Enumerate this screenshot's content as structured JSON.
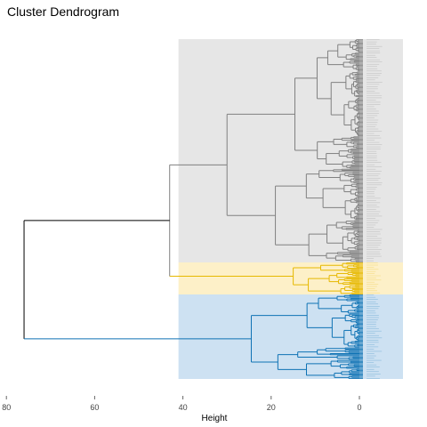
{
  "chart_data": {
    "type": "dendrogram",
    "title": "Cluster Dendrogram",
    "xlabel": "Height",
    "ylabel": "",
    "xlim": [
      80,
      -10
    ],
    "x_ticks": [
      80,
      60,
      40,
      20,
      0
    ],
    "grid": false,
    "legend": "none",
    "clusters": [
      {
        "id": 1,
        "color": "#808080",
        "band_color": "#e6e6e6",
        "leaf_count": 200,
        "merge_height": 30
      },
      {
        "id": 2,
        "color": "#e6b800",
        "band_color": "#fdf0c8",
        "leaf_count": 30,
        "merge_height": 15
      },
      {
        "id": 3,
        "color": "#0e72b4",
        "band_color": "#cde1f2",
        "leaf_count": 75,
        "merge_height": 24.5
      }
    ],
    "merges": [
      {
        "left": "cluster 1",
        "right": "cluster 2",
        "height": 43,
        "color": "#e6b800"
      },
      {
        "left": "(1,2)",
        "right": "cluster 3",
        "height": 76,
        "color": "#000000"
      }
    ],
    "cut_height": 41
  }
}
